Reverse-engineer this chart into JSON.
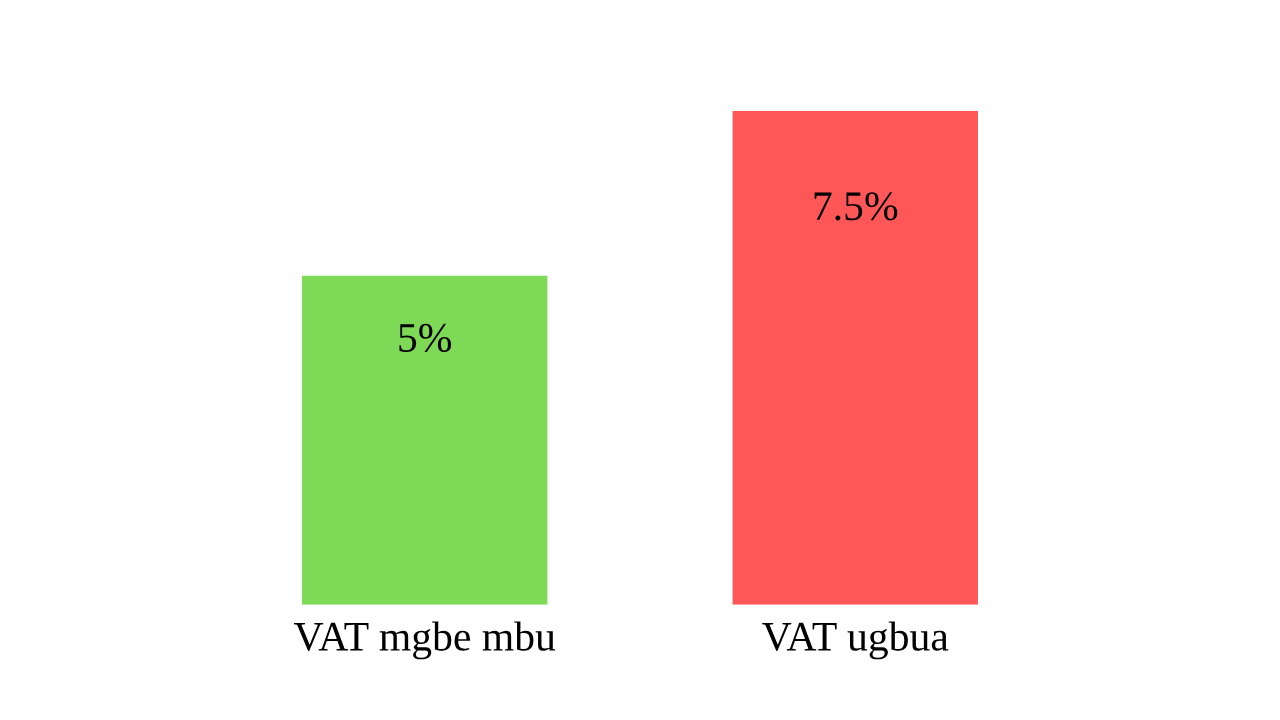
{
  "chart_data": {
    "type": "bar",
    "categories": [
      "VAT mgbe mbu",
      "VAT ugbua"
    ],
    "values": [
      5,
      7.5
    ],
    "colors": [
      "#7ed957",
      "#ff5757"
    ],
    "value_labels": [
      "5%",
      "7.5%"
    ],
    "grid": false,
    "legend": false
  }
}
